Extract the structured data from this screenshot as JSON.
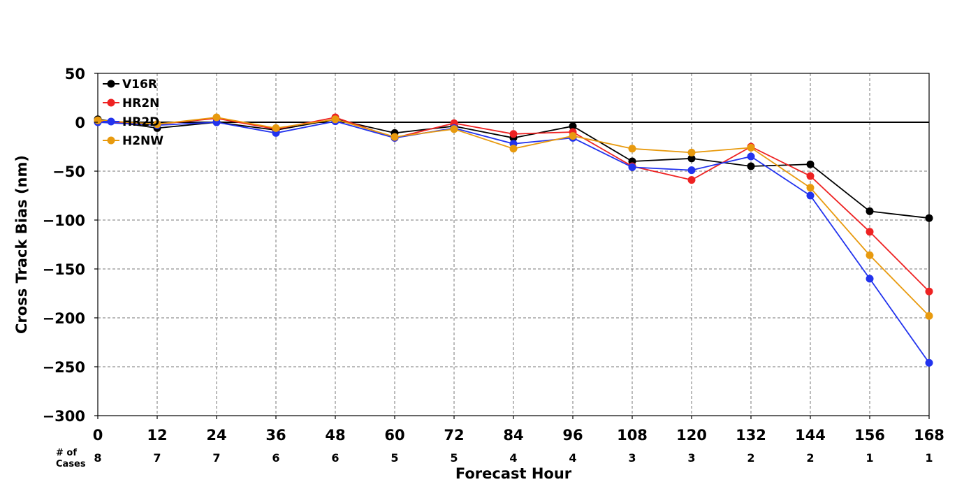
{
  "chart_data": {
    "type": "line",
    "title": "",
    "xlabel": "Forecast Hour",
    "ylabel": "Cross Track Bias (nm)",
    "xlim": [
      0,
      168
    ],
    "ylim": [
      -300,
      50
    ],
    "x": [
      0,
      12,
      24,
      36,
      48,
      60,
      72,
      84,
      96,
      108,
      120,
      132,
      144,
      156,
      168
    ],
    "x_ticks": [
      "0",
      "12",
      "24",
      "36",
      "48",
      "60",
      "72",
      "84",
      "96",
      "108",
      "120",
      "132",
      "144",
      "156",
      "168"
    ],
    "y_ticks": [
      "50",
      "0",
      "−50",
      "−100",
      "−150",
      "−200",
      "−250",
      "−300"
    ],
    "y_tick_values": [
      50,
      0,
      -50,
      -100,
      -150,
      -200,
      -250,
      -300
    ],
    "grid": true,
    "legend_position": "top-left",
    "cases_label_line1": "# of",
    "cases_label_line2": "Cases",
    "cases": [
      "8",
      "7",
      "7",
      "6",
      "6",
      "5",
      "5",
      "4",
      "4",
      "3",
      "3",
      "2",
      "2",
      "1",
      "1"
    ],
    "series": [
      {
        "name": "V16R",
        "color": "#000000",
        "values": [
          3,
          -6,
          0,
          -8,
          3,
          -11,
          -4,
          -16,
          -4,
          -40,
          -37,
          -45,
          -43,
          -91,
          -98
        ]
      },
      {
        "name": "HR2N",
        "color": "#ee2222",
        "values": [
          1,
          -2,
          4,
          -7,
          5,
          -16,
          -1,
          -12,
          -10,
          -45,
          -59,
          -25,
          -55,
          -112,
          -173
        ]
      },
      {
        "name": "HR2D",
        "color": "#2233ee",
        "values": [
          0,
          -3,
          0,
          -11,
          1,
          -16,
          -6,
          -22,
          -16,
          -46,
          -49,
          -35,
          -75,
          -160,
          -246
        ]
      },
      {
        "name": "H2NW",
        "color": "#e89a0e",
        "values": [
          2,
          -2,
          5,
          -6,
          3,
          -15,
          -7,
          -27,
          -14,
          -27,
          -31,
          -26,
          -67,
          -136,
          -198
        ]
      }
    ]
  }
}
